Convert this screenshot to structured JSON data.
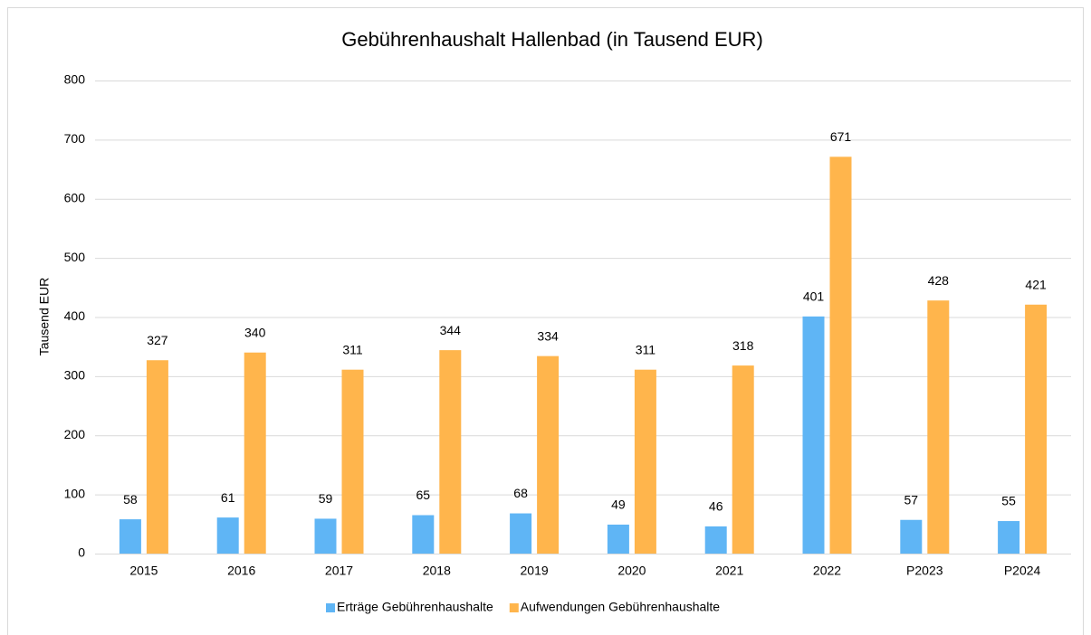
{
  "chart_data": {
    "type": "bar",
    "title": "Gebührenhaushalt Hallenbad (in Tausend EUR)",
    "y_label": "Tausend EUR",
    "categories": [
      "2015",
      "2016",
      "2017",
      "2018",
      "2019",
      "2020",
      "2021",
      "2022",
      "P2023",
      "P2024"
    ],
    "series": [
      {
        "name": "Erträge Gebührenhaushalte",
        "color": "#5fb5f5",
        "values": [
          58,
          61,
          59,
          65,
          68,
          49,
          46,
          401,
          57,
          55
        ]
      },
      {
        "name": "Aufwendungen Gebührenhaushalte",
        "color": "#ffb54c",
        "values": [
          327,
          340,
          311,
          344,
          334,
          311,
          318,
          671,
          428,
          421
        ]
      }
    ],
    "ylim": [
      0,
      800
    ],
    "yticks": [
      0,
      100,
      200,
      300,
      400,
      500,
      600,
      700,
      800
    ],
    "grid": true,
    "legend": "bottom",
    "data_labels": true
  }
}
